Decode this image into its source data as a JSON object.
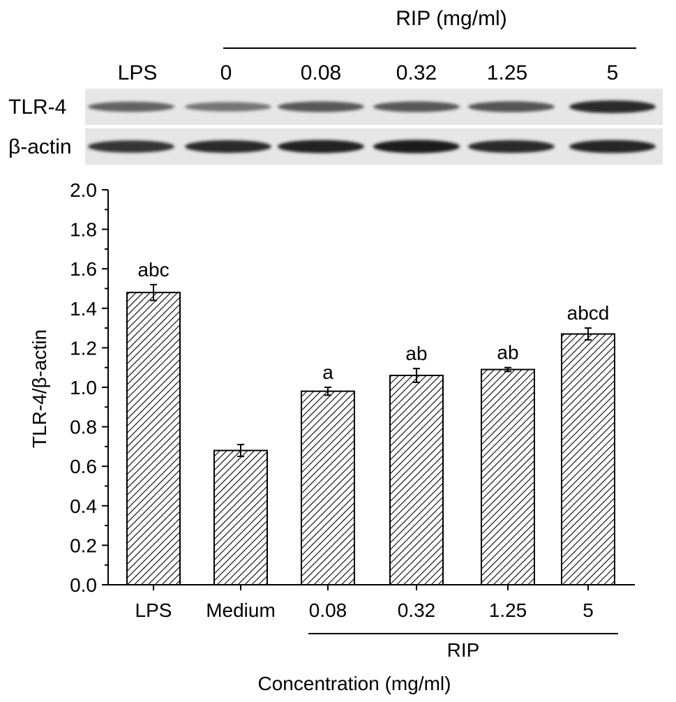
{
  "blot": {
    "header_title": "RIP (mg/ml)",
    "lane_labels": [
      "LPS",
      "0",
      "0.08",
      "0.32",
      "1.25",
      "5"
    ],
    "rows": [
      {
        "label": "TLR-4",
        "intensity": [
          0.55,
          0.45,
          0.6,
          0.6,
          0.62,
          0.85
        ]
      },
      {
        "label": "β-actin",
        "intensity": [
          0.8,
          0.85,
          0.9,
          0.92,
          0.85,
          0.88
        ]
      }
    ]
  },
  "chart_data": {
    "type": "bar",
    "categories": [
      "LPS",
      "Medium",
      "0.08",
      "0.32",
      "1.25",
      "5"
    ],
    "values": [
      1.48,
      0.68,
      0.98,
      1.06,
      1.09,
      1.27
    ],
    "errors": [
      0.04,
      0.03,
      0.02,
      0.035,
      0.01,
      0.03
    ],
    "annotations": [
      "abc",
      "",
      "a",
      "ab",
      "ab",
      "abcd"
    ],
    "group_label": "RIP",
    "group_categories": [
      "0.08",
      "0.32",
      "1.25",
      "5"
    ],
    "xlabel": "Concentration (mg/ml)",
    "ylabel": "TLR-4/β-actin",
    "ylim": [
      0,
      2.0
    ],
    "yticks": [
      "0.0",
      "0.2",
      "0.4",
      "0.6",
      "0.8",
      "1.0",
      "1.2",
      "1.4",
      "1.6",
      "1.8",
      "2.0"
    ],
    "grid": false,
    "bar_pattern": "diagonal-hatch",
    "bar_color": "#000000"
  }
}
